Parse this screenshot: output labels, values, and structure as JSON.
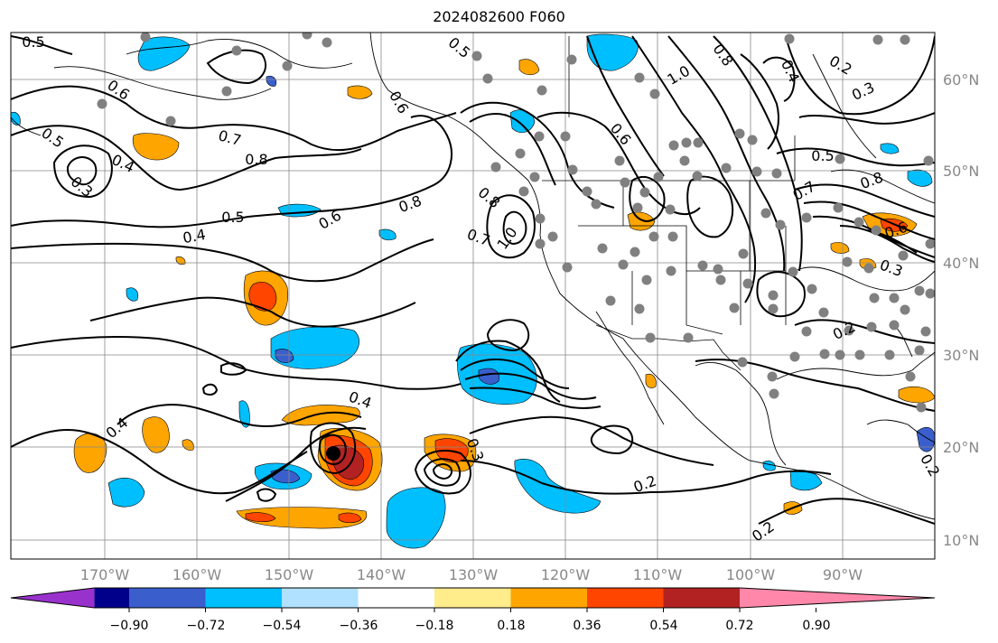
{
  "title": "2024082600 F060",
  "map": {
    "lon_labels": [
      "170°W",
      "160°W",
      "150°W",
      "140°W",
      "130°W",
      "120°W",
      "110°W",
      "100°W",
      "90°W"
    ],
    "lat_labels": [
      "60°N",
      "50°N",
      "40°N",
      "30°N",
      "20°N",
      "10°N"
    ],
    "contour_labels": [
      "0.5",
      "0.6",
      "0.5",
      "0.4",
      "0.3",
      "0.7",
      "0.8",
      "0.5",
      "0.4",
      "0.6",
      "0.8",
      "0.8",
      "0.7",
      "1.0",
      "0.5",
      "0.6",
      "0.6",
      "1.0",
      "0.8",
      "0.4",
      "0.2",
      "0.3",
      "0.5",
      "0.7",
      "0.8",
      "0.6",
      "0.3",
      "0.2",
      "0.4",
      "0.4",
      "0.3",
      "0.2",
      "0.2",
      "0.2"
    ],
    "colors": {
      "land_outline": "#000000",
      "grid": "#888888",
      "station_dot": "#808080",
      "cyclone_marker": "#000000"
    }
  },
  "colorbar": {
    "labels": [
      "−0.90",
      "−0.72",
      "−0.54",
      "−0.36",
      "−0.18",
      "0.18",
      "0.36",
      "0.54",
      "0.72",
      "0.90"
    ],
    "colors": [
      "#9932CC",
      "#00008B",
      "#3A5FCD",
      "#00BFFF",
      "#B0E2FF",
      "#FFFFFF",
      "#FFEC8B",
      "#FFA500",
      "#FF4500",
      "#B22222",
      "#FF88AA"
    ]
  }
}
